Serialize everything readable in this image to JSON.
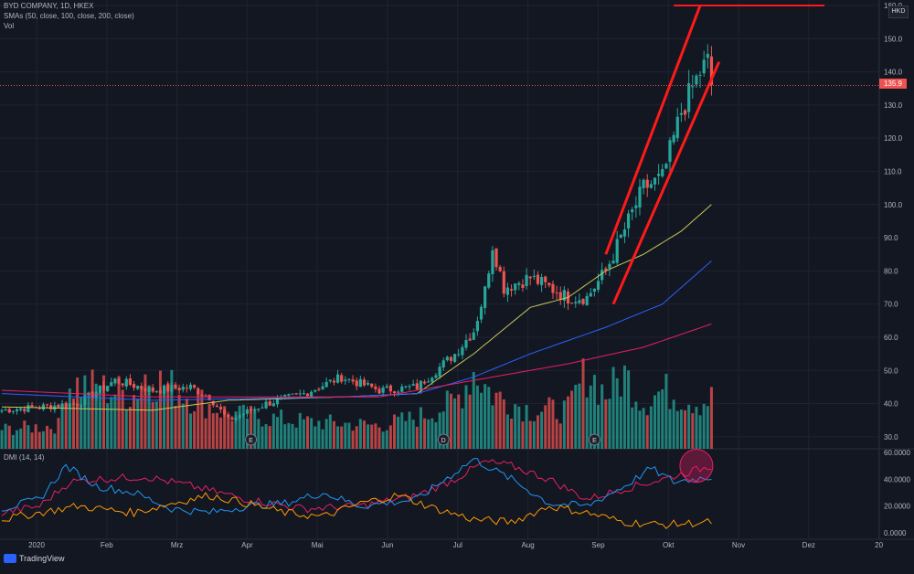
{
  "header": {
    "symbol_line": "BYD COMPANY, 1D, HKEX",
    "sma_line": "SMAs (50, close, 100, close, 200, close)",
    "vol_line": "Vol",
    "dmi_line": "DMI (14, 14)"
  },
  "currency_badge": "HKD",
  "last_price_tag": "135.9",
  "footer": {
    "brand": "TradingView"
  },
  "colors": {
    "background": "#131722",
    "up": "#26a69a",
    "down": "#ef5350",
    "sma50": "#c8c85a",
    "sma100": "#2962ff",
    "sma200": "#e91e63",
    "dmi_plus": "#2196f3",
    "dmi_minus": "#ff9800",
    "adx": "#e91e63",
    "channel": "#ff1a1a"
  },
  "chart_data": {
    "type": "candlestick",
    "price_axis": {
      "min": 25,
      "max": 160,
      "ticks": [
        "160.0",
        "150.0",
        "140.0",
        "130.0",
        "120.0",
        "110.0",
        "100.0",
        "90.0",
        "80.0",
        "70.0",
        "60.0",
        "50.0",
        "40.0",
        "30.0"
      ]
    },
    "dmi_axis": {
      "min": 0,
      "max": 60,
      "ticks": [
        "60.0000",
        "40.0000",
        "20.0000",
        "0.0000"
      ]
    },
    "x_ticks": [
      "2020",
      "Feb",
      "Mrz",
      "Apr",
      "Mai",
      "Jun",
      "Jul",
      "Aug",
      "Sep",
      "Okt",
      "Nov",
      "Dez",
      "20"
    ],
    "events": [
      "E",
      "D",
      "E"
    ],
    "price_anchors": [
      [
        0,
        38
      ],
      [
        10,
        39
      ],
      [
        20,
        40
      ],
      [
        30,
        47
      ],
      [
        40,
        44
      ],
      [
        50,
        45
      ],
      [
        55,
        42
      ],
      [
        60,
        35
      ],
      [
        70,
        40
      ],
      [
        80,
        43
      ],
      [
        90,
        48
      ],
      [
        100,
        44
      ],
      [
        110,
        45
      ],
      [
        120,
        55
      ],
      [
        125,
        62
      ],
      [
        128,
        74
      ],
      [
        130,
        88
      ],
      [
        133,
        75
      ],
      [
        140,
        78
      ],
      [
        150,
        72
      ],
      [
        155,
        72
      ],
      [
        160,
        80
      ],
      [
        170,
        105
      ],
      [
        175,
        108
      ],
      [
        180,
        128
      ],
      [
        185,
        140
      ],
      [
        187,
        143
      ],
      [
        188,
        136
      ]
    ],
    "sma50_anchors": [
      [
        0,
        39
      ],
      [
        40,
        38
      ],
      [
        60,
        41
      ],
      [
        90,
        42
      ],
      [
        110,
        43
      ],
      [
        125,
        55
      ],
      [
        140,
        69
      ],
      [
        150,
        72
      ],
      [
        160,
        80
      ],
      [
        170,
        85
      ],
      [
        180,
        92
      ],
      [
        188,
        100
      ]
    ],
    "sma100_anchors": [
      [
        0,
        43
      ],
      [
        40,
        41
      ],
      [
        90,
        42
      ],
      [
        110,
        43
      ],
      [
        125,
        48
      ],
      [
        140,
        55
      ],
      [
        160,
        63
      ],
      [
        175,
        70
      ],
      [
        188,
        83
      ]
    ],
    "sma200_anchors": [
      [
        0,
        44
      ],
      [
        40,
        42
      ],
      [
        100,
        42
      ],
      [
        125,
        47
      ],
      [
        150,
        52
      ],
      [
        170,
        57
      ],
      [
        188,
        64
      ]
    ],
    "volume_anchors": [
      [
        0,
        0.25
      ],
      [
        15,
        0.3
      ],
      [
        17,
        0.85
      ],
      [
        35,
        0.7
      ],
      [
        38,
        0.95
      ],
      [
        60,
        0.45
      ],
      [
        80,
        0.35
      ],
      [
        100,
        0.3
      ],
      [
        110,
        0.4
      ],
      [
        120,
        0.6
      ],
      [
        125,
        1.0
      ],
      [
        130,
        0.7
      ],
      [
        140,
        0.5
      ],
      [
        150,
        0.5
      ],
      [
        155,
        1.0
      ],
      [
        160,
        0.7
      ],
      [
        165,
        0.95
      ],
      [
        170,
        0.6
      ],
      [
        175,
        0.75
      ],
      [
        185,
        0.6
      ],
      [
        188,
        0.65
      ]
    ],
    "dmi_plus_anchors": [
      [
        0,
        18
      ],
      [
        10,
        25
      ],
      [
        17,
        50
      ],
      [
        25,
        35
      ],
      [
        35,
        30
      ],
      [
        45,
        18
      ],
      [
        55,
        15
      ],
      [
        65,
        20
      ],
      [
        75,
        22
      ],
      [
        85,
        30
      ],
      [
        95,
        20
      ],
      [
        110,
        25
      ],
      [
        120,
        45
      ],
      [
        125,
        55
      ],
      [
        135,
        40
      ],
      [
        145,
        22
      ],
      [
        155,
        20
      ],
      [
        165,
        35
      ],
      [
        172,
        48
      ],
      [
        178,
        38
      ],
      [
        188,
        42
      ]
    ],
    "dmi_minus_anchors": [
      [
        0,
        10
      ],
      [
        10,
        15
      ],
      [
        20,
        20
      ],
      [
        35,
        15
      ],
      [
        45,
        22
      ],
      [
        55,
        28
      ],
      [
        65,
        22
      ],
      [
        75,
        15
      ],
      [
        85,
        12
      ],
      [
        95,
        22
      ],
      [
        105,
        28
      ],
      [
        115,
        18
      ],
      [
        125,
        10
      ],
      [
        135,
        8
      ],
      [
        145,
        20
      ],
      [
        155,
        15
      ],
      [
        165,
        8
      ],
      [
        175,
        6
      ],
      [
        188,
        8
      ]
    ],
    "adx_anchors": [
      [
        0,
        15
      ],
      [
        10,
        20
      ],
      [
        18,
        38
      ],
      [
        25,
        40
      ],
      [
        38,
        42
      ],
      [
        50,
        35
      ],
      [
        65,
        25
      ],
      [
        80,
        18
      ],
      [
        95,
        20
      ],
      [
        110,
        28
      ],
      [
        120,
        40
      ],
      [
        128,
        53
      ],
      [
        135,
        50
      ],
      [
        145,
        40
      ],
      [
        155,
        25
      ],
      [
        165,
        33
      ],
      [
        175,
        40
      ],
      [
        188,
        50
      ]
    ],
    "channel": {
      "upper": [
        [
          160,
          85
        ],
        [
          185,
          160
        ]
      ],
      "lower": [
        [
          162,
          70
        ],
        [
          190,
          143
        ]
      ],
      "horizontal_price": 160
    },
    "last_price": 135.9,
    "series": [
      {
        "name": "BYD COMPANY"
      },
      {
        "name": "SMA 50"
      },
      {
        "name": "SMA 100"
      },
      {
        "name": "SMA 200"
      },
      {
        "name": "Vol"
      },
      {
        "name": "DMI"
      }
    ]
  }
}
